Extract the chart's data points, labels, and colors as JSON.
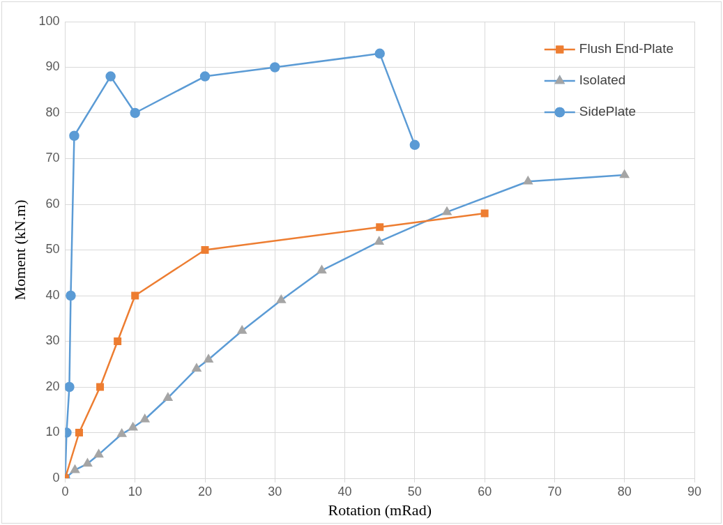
{
  "chart_data": {
    "type": "line",
    "xlabel": "Rotation (mRad)",
    "ylabel": "Moment (kN.m)",
    "xlim": [
      0,
      90
    ],
    "xticks": [
      0,
      10,
      20,
      30,
      40,
      50,
      60,
      70,
      80,
      90
    ],
    "ylim": [
      0,
      100
    ],
    "yticks": [
      0,
      10,
      20,
      30,
      40,
      50,
      60,
      70,
      80,
      90,
      100
    ],
    "grid": true,
    "legend": "top right",
    "line_style": "solid",
    "series": [
      {
        "name": "Flush End-Plate",
        "color": "#ed7d31",
        "marker": "square",
        "x": [
          0,
          2,
          5,
          7.5,
          10,
          20,
          45,
          60
        ],
        "values": [
          0,
          10,
          20,
          30,
          40,
          50,
          55,
          58
        ]
      },
      {
        "name": "Isolated",
        "color": "#5b9bd5",
        "marker": "triangle",
        "colors": [
          "#a5a5a5",
          "#a5a5a5",
          "#a5a5a5",
          "#a5a5a5",
          "#a5a5a5",
          "#a5a5a5",
          "#a5a5a5",
          "#a5a5a5",
          "#a5a5a5",
          "#a5a5a5",
          "#a5a5a5",
          "#a5a5a5",
          "#a5a5a5",
          "#a5a5a5",
          "#a5a5a5",
          "#a5a5a5",
          "#a5a5a5"
        ],
        "x": [
          0,
          1.4,
          3.2,
          4.8,
          8.1,
          9.7,
          11.4,
          14.7,
          18.8,
          20.5,
          25.3,
          30.9,
          36.7,
          44.9,
          54.6,
          66.2,
          80
        ],
        "values": [
          0,
          1.8,
          3.2,
          5.2,
          9.7,
          11.1,
          12.9,
          17.6,
          24,
          26,
          32.3,
          39,
          45.5,
          51.8,
          58.3,
          65,
          66.4
        ]
      },
      {
        "name": "SidePlate",
        "color": "#5b9bd5",
        "marker": "circle",
        "x": [
          0,
          0.2,
          0.6,
          0.8,
          1.3,
          6.5,
          10,
          20,
          30,
          45,
          50
        ],
        "values": [
          0,
          10,
          20,
          40,
          75,
          88,
          80,
          88,
          90,
          93,
          73
        ]
      }
    ]
  }
}
